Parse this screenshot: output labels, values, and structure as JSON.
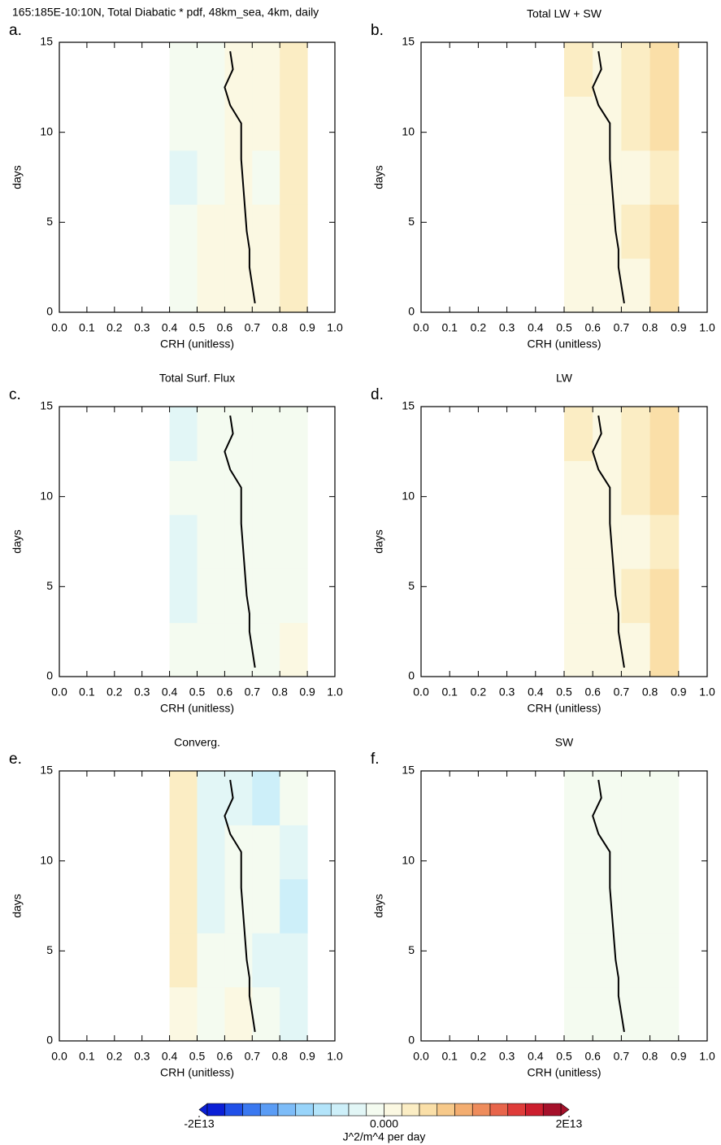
{
  "chart_data": [
    {
      "type": "contour-line",
      "label": "a.",
      "title": "165:185E-10:10N, Total Diabatic * pdf, 48km_sea, 4km, daily",
      "xlabel": "CRH (unitless)",
      "ylabel": "days",
      "x": [
        0.71,
        0.7,
        0.69,
        0.69,
        0.68,
        0.675,
        0.67,
        0.665,
        0.66,
        0.66,
        0.66,
        0.62,
        0.6,
        0.63,
        0.62
      ],
      "values": [
        0.5,
        1.5,
        2.5,
        3.5,
        4.5,
        5.5,
        6.5,
        7.5,
        8.5,
        9.5,
        10.5,
        11.5,
        12.5,
        13.5,
        14.5
      ],
      "xbins": [
        0.4,
        0.5,
        0.6,
        0.7,
        0.8,
        0.9
      ],
      "ybins": [
        0,
        3,
        6,
        9,
        12,
        15
      ],
      "z": [
        [
          -500000000000.0,
          800000000000.0,
          1200000000000.0,
          500000000000.0,
          3500000000000.0
        ],
        [
          -1500000000000.0,
          300000000000.0,
          1000000000000.0,
          200000000000.0,
          3000000000000.0
        ],
        [
          -2500000000000.0,
          -500000000000.0,
          500000000000.0,
          -300000000000.0,
          3500000000000.0
        ],
        [
          -1000000000000.0,
          -300000000000.0,
          800000000000.0,
          300000000000.0,
          3000000000000.0
        ],
        [
          -1200000000000.0,
          -500000000000.0,
          300000000000.0,
          500000000000.0,
          2500000000000.0
        ]
      ]
    },
    {
      "type": "contour-line",
      "label": "b.",
      "title": "Total LW + SW",
      "xlabel": "CRH (unitless)",
      "ylabel": "days",
      "x": [
        0.71,
        0.7,
        0.69,
        0.69,
        0.68,
        0.675,
        0.67,
        0.665,
        0.66,
        0.66,
        0.66,
        0.62,
        0.6,
        0.63,
        0.62
      ],
      "values": [
        0.5,
        1.5,
        2.5,
        3.5,
        4.5,
        5.5,
        6.5,
        7.5,
        8.5,
        9.5,
        10.5,
        11.5,
        12.5,
        13.5,
        14.5
      ],
      "xbins": [
        0.4,
        0.5,
        0.6,
        0.7,
        0.8,
        0.9
      ],
      "ybins": [
        0,
        3,
        6,
        9,
        12,
        15
      ],
      "z": [
        [
          null,
          1000000000000.0,
          500000000000.0,
          1500000000000.0,
          4000000000000.0
        ],
        [
          null,
          800000000000.0,
          300000000000.0,
          2000000000000.0,
          4500000000000.0
        ],
        [
          null,
          500000000000.0,
          200000000000.0,
          1500000000000.0,
          3500000000000.0
        ],
        [
          null,
          1500000000000.0,
          500000000000.0,
          2000000000000.0,
          4000000000000.0
        ],
        [
          null,
          2000000000000.0,
          500000000000.0,
          2500000000000.0,
          4500000000000.0
        ]
      ]
    },
    {
      "type": "contour-line",
      "label": "c.",
      "title": "Total Surf. Flux",
      "xlabel": "CRH (unitless)",
      "ylabel": "days",
      "x": [
        0.71,
        0.7,
        0.69,
        0.69,
        0.68,
        0.675,
        0.67,
        0.665,
        0.66,
        0.66,
        0.66,
        0.62,
        0.6,
        0.63,
        0.62
      ],
      "values": [
        0.5,
        1.5,
        2.5,
        3.5,
        4.5,
        5.5,
        6.5,
        7.5,
        8.5,
        9.5,
        10.5,
        11.5,
        12.5,
        13.5,
        14.5
      ],
      "xbins": [
        0.4,
        0.5,
        0.6,
        0.7,
        0.8,
        0.9
      ],
      "ybins": [
        0,
        3,
        6,
        9,
        12,
        15
      ],
      "z": [
        [
          -1000000000000.0,
          -1500000000000.0,
          -500000000000.0,
          -1000000000000.0,
          500000000000.0
        ],
        [
          -2500000000000.0,
          -2000000000000.0,
          -1000000000000.0,
          -1500000000000.0,
          -500000000000.0
        ],
        [
          -3000000000000.0,
          -2000000000000.0,
          -1000000000000.0,
          -1500000000000.0,
          -800000000000.0
        ],
        [
          -2000000000000.0,
          -1500000000000.0,
          -1000000000000.0,
          -1000000000000.0,
          -500000000000.0
        ],
        [
          -2500000000000.0,
          -2000000000000.0,
          -1000000000000.0,
          -1000000000000.0,
          -500000000000.0
        ]
      ]
    },
    {
      "type": "contour-line",
      "label": "d.",
      "title": "LW",
      "xlabel": "CRH (unitless)",
      "ylabel": "days",
      "x": [
        0.71,
        0.7,
        0.69,
        0.69,
        0.68,
        0.675,
        0.67,
        0.665,
        0.66,
        0.66,
        0.66,
        0.62,
        0.6,
        0.63,
        0.62
      ],
      "values": [
        0.5,
        1.5,
        2.5,
        3.5,
        4.5,
        5.5,
        6.5,
        7.5,
        8.5,
        9.5,
        10.5,
        11.5,
        12.5,
        13.5,
        14.5
      ],
      "xbins": [
        0.4,
        0.5,
        0.6,
        0.7,
        0.8,
        0.9
      ],
      "ybins": [
        0,
        3,
        6,
        9,
        12,
        15
      ],
      "z": [
        [
          null,
          1200000000000.0,
          500000000000.0,
          1500000000000.0,
          4000000000000.0
        ],
        [
          null,
          1000000000000.0,
          300000000000.0,
          2000000000000.0,
          4500000000000.0
        ],
        [
          null,
          800000000000.0,
          200000000000.0,
          1500000000000.0,
          3500000000000.0
        ],
        [
          null,
          1500000000000.0,
          500000000000.0,
          2000000000000.0,
          4000000000000.0
        ],
        [
          null,
          2500000000000.0,
          500000000000.0,
          2500000000000.0,
          4500000000000.0
        ]
      ]
    },
    {
      "type": "contour-line",
      "label": "e.",
      "title": "Converg.",
      "xlabel": "CRH (unitless)",
      "ylabel": "days",
      "x": [
        0.71,
        0.7,
        0.69,
        0.69,
        0.68,
        0.675,
        0.67,
        0.665,
        0.66,
        0.66,
        0.66,
        0.62,
        0.6,
        0.63,
        0.62
      ],
      "values": [
        0.5,
        1.5,
        2.5,
        3.5,
        4.5,
        5.5,
        6.5,
        7.5,
        8.5,
        9.5,
        10.5,
        11.5,
        12.5,
        13.5,
        14.5
      ],
      "xbins": [
        0.4,
        0.5,
        0.6,
        0.7,
        0.8,
        0.9
      ],
      "ybins": [
        0,
        3,
        6,
        9,
        12,
        15
      ],
      "z": [
        [
          500000000000.0,
          -1000000000000.0,
          1000000000000.0,
          -2000000000000.0,
          -4000000000000.0
        ],
        [
          3500000000000.0,
          -1500000000000.0,
          -500000000000.0,
          -3000000000000.0,
          -3000000000000.0
        ],
        [
          3000000000000.0,
          -2500000000000.0,
          -1000000000000.0,
          -2000000000000.0,
          -5000000000000.0
        ],
        [
          2000000000000.0,
          -3000000000000.0,
          -1000000000000.0,
          -1500000000000.0,
          -3000000000000.0
        ],
        [
          2500000000000.0,
          -3000000000000.0,
          -4000000000000.0,
          -6000000000000.0,
          -2000000000000.0
        ]
      ]
    },
    {
      "type": "contour-line",
      "label": "f.",
      "title": "SW",
      "xlabel": "CRH (unitless)",
      "ylabel": "days",
      "x": [
        0.71,
        0.7,
        0.69,
        0.69,
        0.68,
        0.675,
        0.67,
        0.665,
        0.66,
        0.66,
        0.66,
        0.62,
        0.6,
        0.63,
        0.62
      ],
      "values": [
        0.5,
        1.5,
        2.5,
        3.5,
        4.5,
        5.5,
        6.5,
        7.5,
        8.5,
        9.5,
        10.5,
        11.5,
        12.5,
        13.5,
        14.5
      ],
      "xbins": [
        0.4,
        0.5,
        0.6,
        0.7,
        0.8,
        0.9
      ],
      "ybins": [
        0,
        3,
        6,
        9,
        12,
        15
      ],
      "z": [
        [
          null,
          -500000000000.0,
          -500000000000.0,
          -500000000000.0,
          -300000000000.0
        ],
        [
          null,
          -500000000000.0,
          -500000000000.0,
          -500000000000.0,
          -300000000000.0
        ],
        [
          null,
          -500000000000.0,
          -500000000000.0,
          -500000000000.0,
          -300000000000.0
        ],
        [
          null,
          -500000000000.0,
          -500000000000.0,
          -500000000000.0,
          -300000000000.0
        ],
        [
          null,
          -500000000000.0,
          -500000000000.0,
          -500000000000.0,
          -300000000000.0
        ]
      ]
    }
  ],
  "axes": {
    "xlim": [
      0,
      1
    ],
    "ylim": [
      0,
      15
    ],
    "xticks": [
      {
        "value": 0,
        "label": "0.0"
      },
      0.1,
      0.2,
      0.3,
      0.4,
      0.5,
      0.6,
      0.7,
      0.8,
      0.9,
      {
        "value": 1,
        "label": "1.0"
      }
    ],
    "yticks": [
      0,
      5,
      10,
      15
    ]
  },
  "colorbar": {
    "title": "J^2/m^4 per day",
    "lim": [
      -20000000000000.0,
      20000000000000.0
    ],
    "ticks": [
      {
        "value": -20000000000000.0,
        "label": "-2E13"
      },
      {
        "value": 0,
        "label": "0.000"
      },
      {
        "value": 20000000000000.0,
        "label": "2E13"
      }
    ],
    "colors": [
      "#0b1fd6",
      "#2050e8",
      "#3a78f0",
      "#5a9cf5",
      "#7dbcf8",
      "#98d4fa",
      "#b3e4fa",
      "#cdeff9",
      "#e2f6f6",
      "#f4fbf0",
      "#fbf8e2",
      "#fbedc4",
      "#fadfa8",
      "#f7c98a",
      "#f3ad70",
      "#ee8c5c",
      "#e8654b",
      "#df3c3a",
      "#cc1e2e",
      "#a5102a"
    ]
  }
}
